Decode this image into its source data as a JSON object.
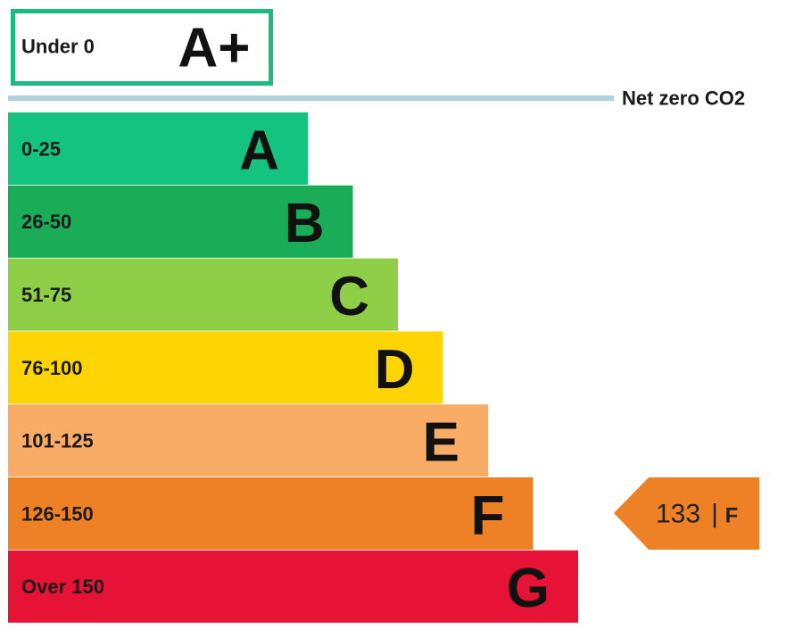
{
  "top_band": {
    "range": "Under 0",
    "rating": "A+",
    "color": "#1abb7e"
  },
  "net_zero": {
    "label": "Net zero CO2",
    "color": "#aed3df"
  },
  "bands": [
    {
      "range": "0-25",
      "rating": "A",
      "color": "#13c37f"
    },
    {
      "range": "26-50",
      "rating": "B",
      "color": "#1aac56"
    },
    {
      "range": "51-75",
      "rating": "C",
      "color": "#8ecf47"
    },
    {
      "range": "76-100",
      "rating": "D",
      "color": "#fed402"
    },
    {
      "range": "101-125",
      "rating": "E",
      "color": "#f9ac66"
    },
    {
      "range": "126-150",
      "rating": "F",
      "color": "#ee8126"
    },
    {
      "range": "Over 150",
      "rating": "G",
      "color": "#e61337"
    }
  ],
  "indicator": {
    "value": 133,
    "separator": "|",
    "rating": "F",
    "color": "#ee8126"
  }
}
